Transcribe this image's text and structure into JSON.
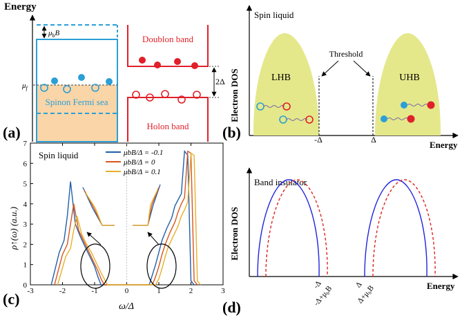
{
  "panel_a": {
    "panel_label": "(a)",
    "energy_label": "Energy",
    "zeeman_mu": "μ",
    "zeeman_sub": "b",
    "zeeman_B": "B",
    "mu_f_mu": "μ",
    "mu_f_sub": "f",
    "spinon_label": "Spinon Fermi sea",
    "doublon_label": "Doublon band",
    "holon_label": "Holon band",
    "gap_label": "2Δ",
    "colors": {
      "blue": "#2b9fd6",
      "red": "#e0202a",
      "sea": "#f9d5a7"
    }
  },
  "panel_b": {
    "panel_label": "(b)",
    "title": "Spin liquid",
    "ylabel": "Electron DOS",
    "xlabel": "Energy",
    "lhb": "LHB",
    "uhb": "UHB",
    "threshold": "Threshold",
    "neg_delta": "-Δ",
    "pos_delta": "Δ",
    "hub_color": "#e4e88a"
  },
  "panel_d": {
    "panel_label": "(d)",
    "title": "Band insulator",
    "ylabel": "Electron DOS",
    "xlabel": "Energy",
    "tick_neg_delta": "-Δ",
    "tick_neg_shift": "-Δ+μ",
    "tick_pos_delta": "Δ",
    "tick_pos_shift": "Δ+μ",
    "tick_sub": "b",
    "tick_B": "B"
  },
  "panel_c": {
    "panel_label": "(c)",
    "annotation": "Spin liquid",
    "ylabel": "ρ↑(ω) (a.u.)",
    "xlabel": "ω/Δ",
    "chart_data": {
      "type": "line",
      "x_range": [
        -3,
        3
      ],
      "y_range": [
        0,
        7
      ],
      "x_ticks": [
        "-3",
        "-2",
        "-1",
        "0",
        "1",
        "2",
        "3"
      ],
      "y_ticks": [
        "0",
        "1",
        "2",
        "3",
        "4",
        "5",
        "6",
        "7"
      ],
      "series": [
        {
          "name": "μbB/Δ = -0.1",
          "color": "#1f5fa8",
          "x": [
            -2.35,
            -2.1,
            -1.95,
            -1.85,
            -1.75,
            -1.6,
            -1.45,
            -1.3,
            -1.15,
            -1.0,
            -0.9,
            -0.8,
            0.7,
            0.8,
            0.9,
            1.0,
            1.1,
            1.25,
            1.4,
            1.5,
            1.6,
            1.7,
            1.8,
            1.9,
            2.0,
            2.1
          ],
          "y": [
            0,
            1.6,
            2.2,
            3.4,
            5.1,
            3.0,
            2.4,
            1.9,
            1.4,
            0.9,
            0.4,
            0,
            0,
            0.5,
            1.0,
            1.6,
            2.2,
            2.8,
            3.3,
            3.9,
            4.2,
            4.5,
            6.6,
            6.4,
            0.2,
            0
          ]
        },
        {
          "name": "μbB/Δ = 0",
          "color": "#d9531e",
          "x": [
            -2.25,
            -2.0,
            -1.85,
            -1.75,
            -1.65,
            -1.5,
            -1.35,
            -1.2,
            -1.05,
            -0.9,
            -0.8,
            -0.7,
            0.8,
            0.9,
            1.0,
            1.1,
            1.2,
            1.35,
            1.5,
            1.6,
            1.7,
            1.8,
            1.9,
            2.0,
            2.1,
            2.2
          ],
          "y": [
            0,
            1.5,
            2.0,
            3.0,
            4.0,
            2.7,
            2.2,
            1.7,
            1.2,
            0.7,
            0.3,
            0,
            0,
            0.4,
            0.9,
            1.5,
            2.0,
            2.6,
            3.1,
            3.6,
            4.0,
            4.3,
            6.6,
            6.5,
            0.2,
            0
          ]
        },
        {
          "name": "μbB/Δ = 0.1",
          "color": "#e6b02a",
          "x": [
            -2.15,
            -1.9,
            -1.75,
            -1.65,
            -1.55,
            -1.4,
            -1.25,
            -1.1,
            -0.95,
            -0.8,
            -0.7,
            -0.6,
            0.9,
            1.0,
            1.1,
            1.2,
            1.3,
            1.45,
            1.6,
            1.7,
            1.8,
            1.9,
            2.0,
            2.1,
            2.2,
            2.3
          ],
          "y": [
            0,
            1.4,
            1.8,
            2.7,
            3.4,
            2.5,
            2.0,
            1.6,
            1.1,
            0.6,
            0.3,
            0,
            0,
            0.3,
            0.8,
            1.4,
            1.9,
            2.4,
            2.9,
            3.4,
            3.7,
            4.1,
            6.5,
            6.4,
            0.2,
            0
          ]
        }
      ]
    }
  }
}
